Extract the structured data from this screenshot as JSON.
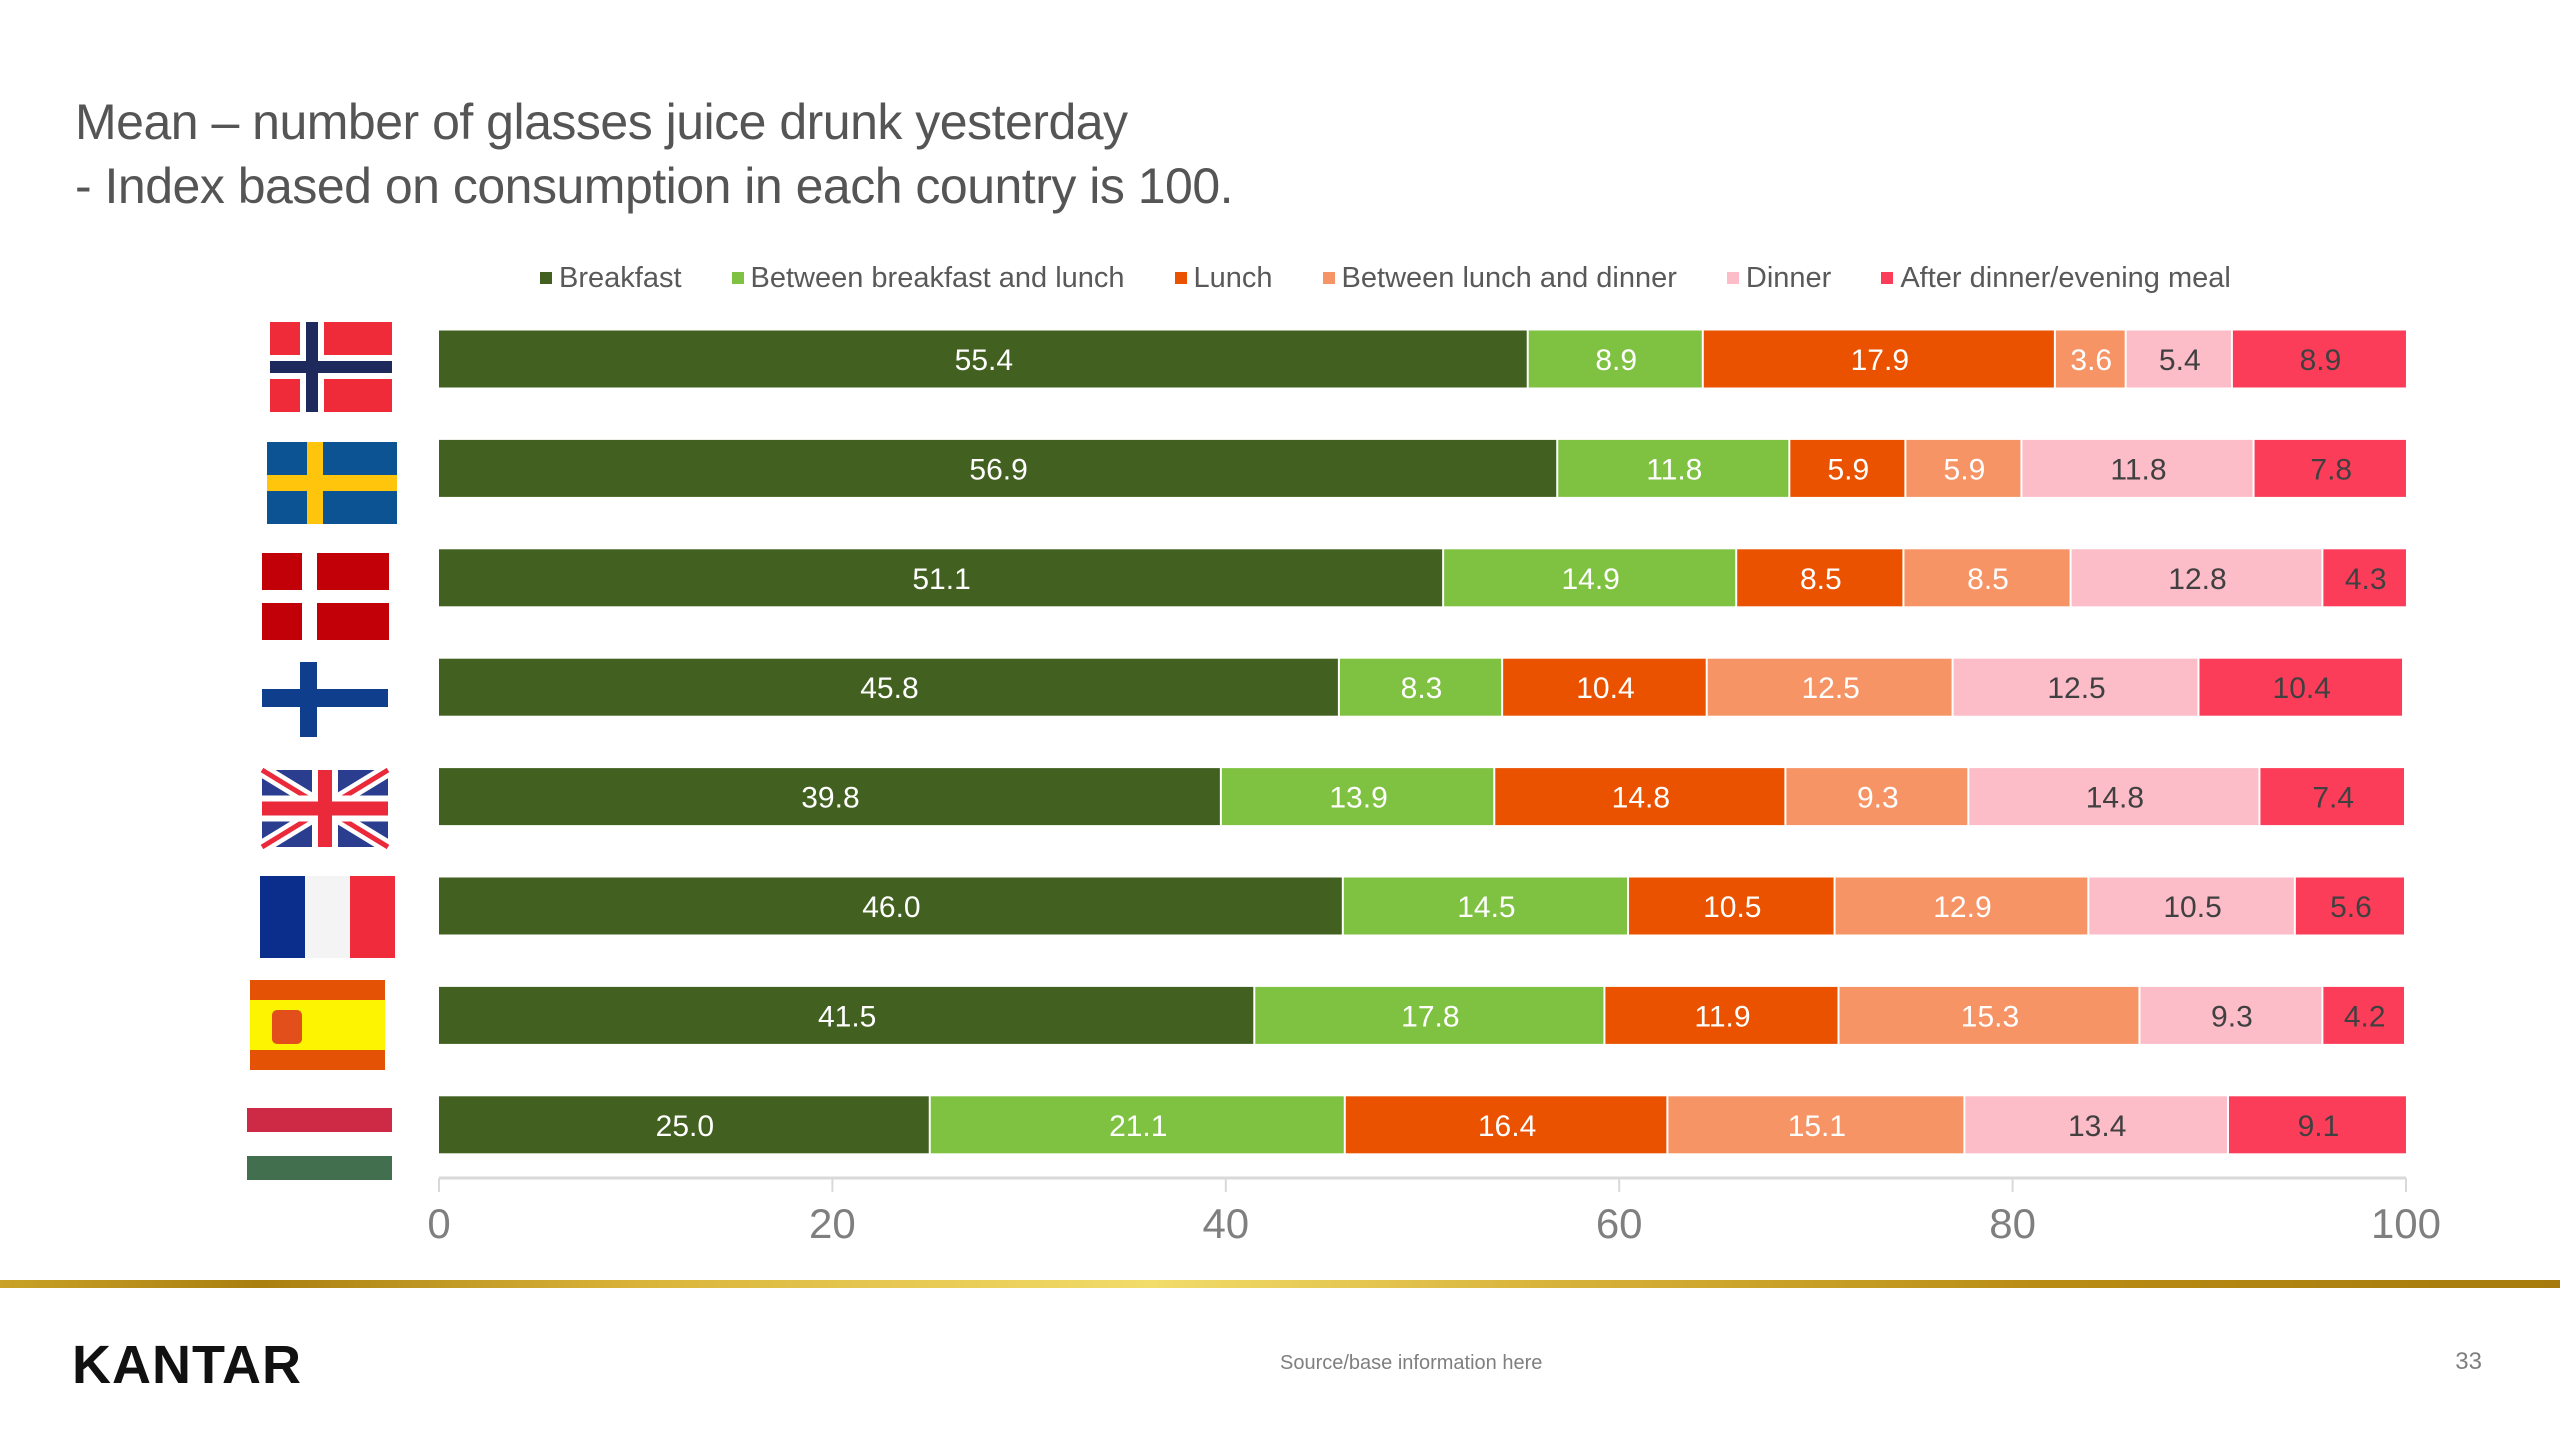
{
  "title": {
    "line1": "Mean – number of glasses juice drunk yesterday",
    "line2": "- Index based on consumption in each country is 100."
  },
  "chart_data": {
    "type": "bar",
    "orientation": "horizontal",
    "stacked": true,
    "title": "Mean – number of glasses juice drunk yesterday - Index based on consumption in each country is 100.",
    "xlabel": "",
    "ylabel": "",
    "xlim": [
      0,
      100
    ],
    "xticks": [
      0,
      20,
      40,
      60,
      80,
      100
    ],
    "xtick_labels": [
      "0",
      "20",
      "40",
      "60",
      "80",
      "100"
    ],
    "grid": false,
    "legend_position": "top",
    "categories": [
      "Norway",
      "Sweden",
      "Denmark",
      "Finland",
      "United Kingdom",
      "France",
      "Spain",
      "Hungary"
    ],
    "category_display": "flag-icons",
    "series": [
      {
        "name": "Breakfast",
        "color": "#426120",
        "label_color": "#ffffff",
        "values": [
          55.4,
          56.9,
          51.1,
          45.8,
          39.8,
          46.0,
          41.5,
          25.0
        ]
      },
      {
        "name": "Between breakfast and lunch",
        "color": "#7fc241",
        "label_color": "#ffffff",
        "values": [
          8.9,
          11.8,
          14.9,
          8.3,
          13.9,
          14.5,
          17.8,
          21.1
        ]
      },
      {
        "name": "Lunch",
        "color": "#eb5200",
        "label_color": "#ffffff",
        "values": [
          17.9,
          5.9,
          8.5,
          10.4,
          14.8,
          10.5,
          11.9,
          16.4
        ]
      },
      {
        "name": "Between lunch and dinner",
        "color": "#f79465",
        "label_color": "#ffffff",
        "values": [
          3.6,
          5.9,
          8.5,
          12.5,
          9.3,
          12.9,
          15.3,
          15.1
        ]
      },
      {
        "name": "Dinner",
        "color": "#fcbcc8",
        "label_color": "#404040",
        "values": [
          5.4,
          11.8,
          12.8,
          12.5,
          14.8,
          10.5,
          9.3,
          13.4
        ]
      },
      {
        "name": "After dinner/evening meal",
        "color": "#fc3d5a",
        "label_color": "#404040",
        "values": [
          8.9,
          7.8,
          4.3,
          10.4,
          7.4,
          5.6,
          4.2,
          9.1
        ]
      }
    ],
    "data_labels": true,
    "data_label_format": "0.0"
  },
  "flags": [
    {
      "country": "Norway",
      "icon": "norway-flag-icon"
    },
    {
      "country": "Sweden",
      "icon": "sweden-flag-icon"
    },
    {
      "country": "Denmark",
      "icon": "denmark-flag-icon"
    },
    {
      "country": "Finland",
      "icon": "finland-flag-icon"
    },
    {
      "country": "United Kingdom",
      "icon": "uk-flag-icon"
    },
    {
      "country": "France",
      "icon": "france-flag-icon"
    },
    {
      "country": "Spain",
      "icon": "spain-flag-icon"
    },
    {
      "country": "Hungary",
      "icon": "hungary-flag-icon"
    }
  ],
  "footer": {
    "logo": "KANTAR",
    "source": "Source/base information here",
    "page_number": "33"
  }
}
